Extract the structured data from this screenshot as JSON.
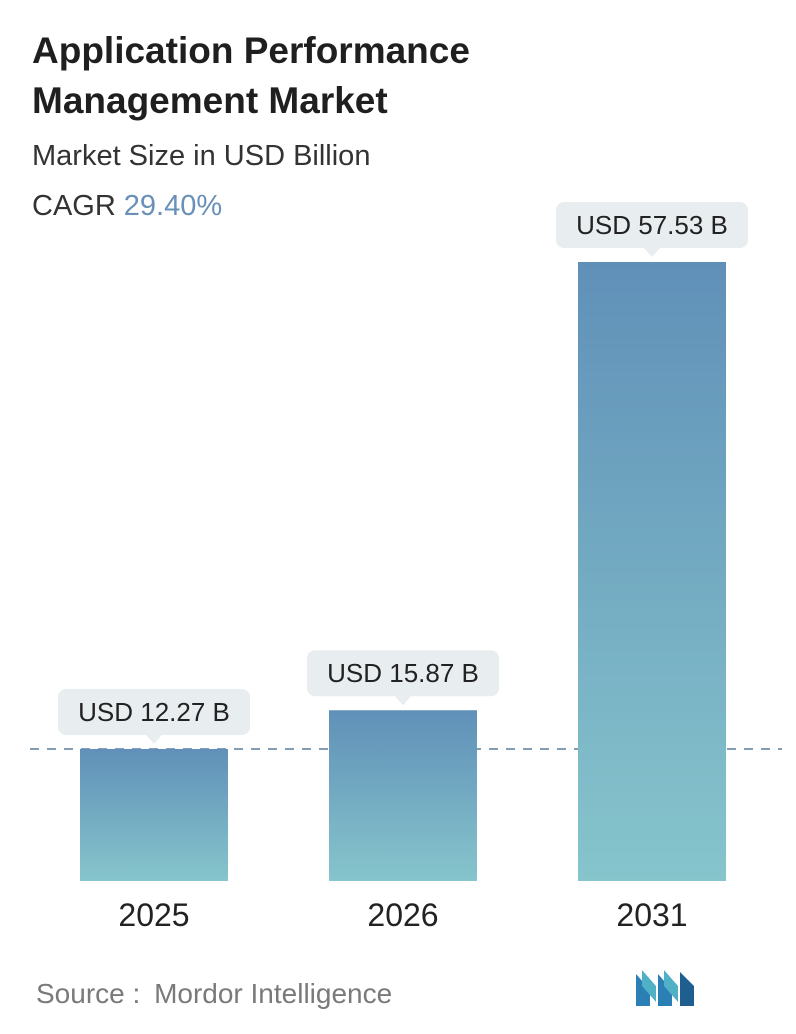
{
  "header": {
    "title_line1": "Application Performance",
    "title_line2": "Management Market",
    "subtitle": "Market Size in USD Billion",
    "cagr_label": "CAGR",
    "cagr_value": "29.40%"
  },
  "footer": {
    "source_label": "Source :",
    "source_name": "Mordor Intelligence",
    "logo_icon": "mordor-intelligence-logo"
  },
  "colors": {
    "bar_top": "#6090b8",
    "bar_bottom": "#86c5cc",
    "callout_bg": "#e8eef0",
    "dashed_line": "#5a7f9c",
    "cagr_accent": "#6a90b8"
  },
  "chart_data": {
    "type": "bar",
    "title": "Application Performance Management Market",
    "subtitle": "Market Size in USD Billion",
    "categories": [
      "2025",
      "2026",
      "2031"
    ],
    "values": [
      12.27,
      15.87,
      57.53
    ],
    "value_labels": [
      "USD 12.27 B",
      "USD 15.87 B",
      "USD 57.53 B"
    ],
    "unit": "USD Billion",
    "reference_line": {
      "value": 12.27,
      "style": "dashed"
    },
    "ylim": [
      0,
      57.53
    ],
    "grid": false,
    "legend": "none"
  }
}
